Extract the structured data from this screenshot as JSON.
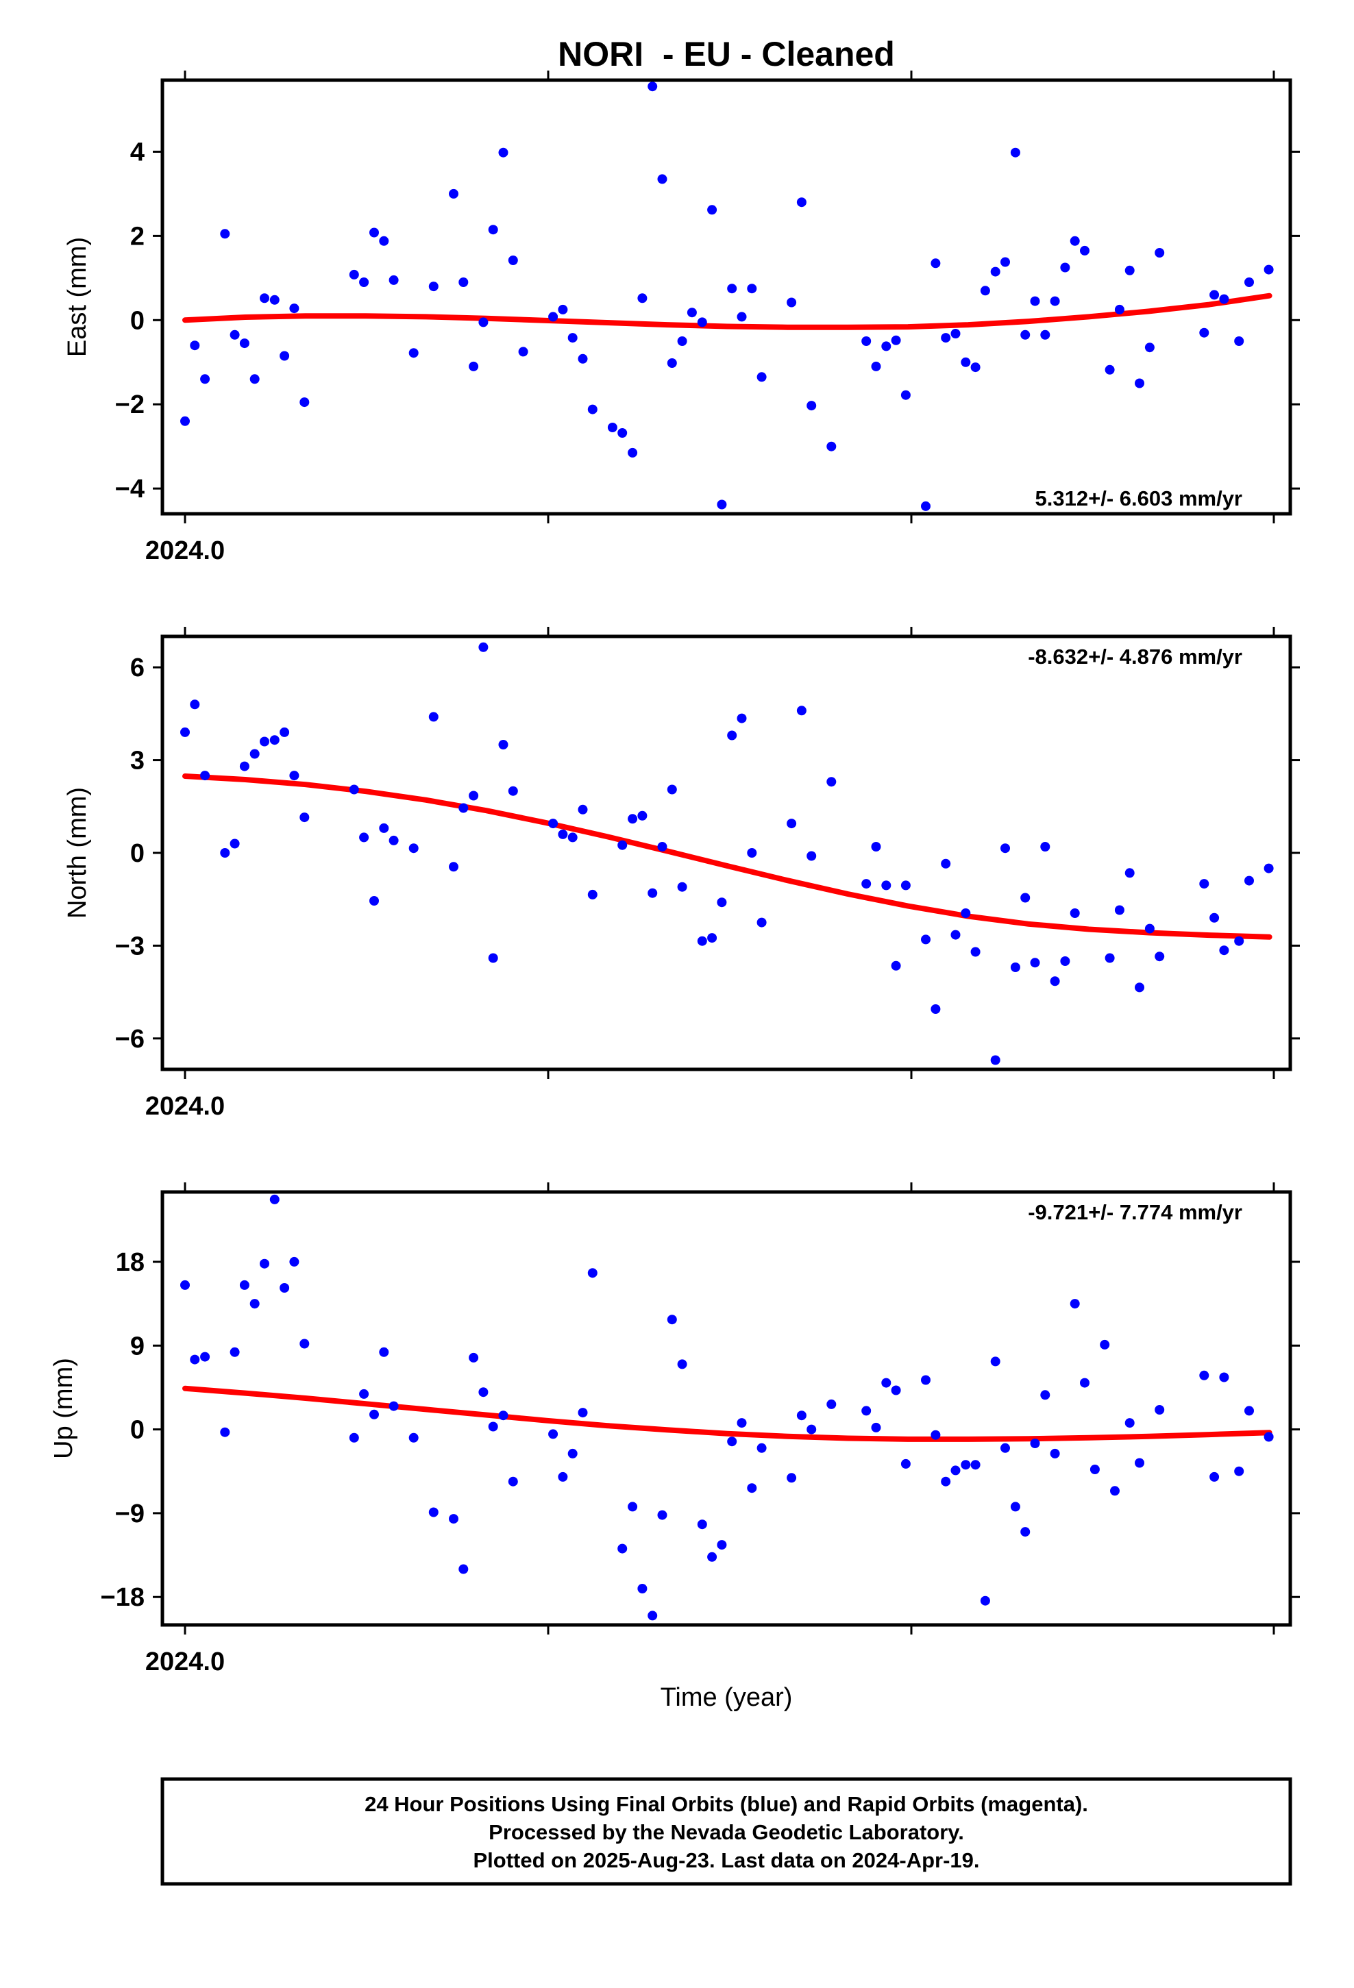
{
  "title": "NORI  - EU - Cleaned",
  "xlabel": "Time (year)",
  "x_tick_label": "2024.0",
  "footer": {
    "line1": "24 Hour Positions Using Final Orbits (blue) and Rapid Orbits (magenta).",
    "line2": "Processed by the Nevada Geodetic Laboratory.",
    "line3": "Plotted on 2025-Aug-23. Last data on 2024-Apr-19."
  },
  "colors": {
    "points": "#0000ff",
    "fit": "#ff0000",
    "frame": "#000000"
  },
  "chart_data": [
    {
      "type": "scatter",
      "panel": "east",
      "ylabel": "East (mm)",
      "rate_label": "5.312+/- 6.603 mm/yr",
      "rate_position": "bottom-right",
      "xlim": [
        2024.0,
        2024.3
      ],
      "ylim": [
        -4.6,
        5.7
      ],
      "yticks": [
        -4,
        -2,
        0,
        2,
        4
      ],
      "ytick_labels": [
        "−4",
        "−2",
        "0",
        "2",
        "4"
      ],
      "x": [
        2024.0,
        2024.0027,
        2024.0055,
        2024.011,
        2024.0137,
        2024.0164,
        2024.0192,
        2024.0219,
        2024.0247,
        2024.0274,
        2024.0301,
        2024.0329,
        2024.0466,
        2024.0493,
        2024.0521,
        2024.0548,
        2024.0575,
        2024.063,
        2024.0685,
        2024.074,
        2024.0767,
        2024.0795,
        2024.0822,
        2024.0849,
        2024.0877,
        2024.0904,
        2024.0932,
        2024.1014,
        2024.1041,
        2024.1068,
        2024.1096,
        2024.1123,
        2024.1178,
        2024.1205,
        2024.1233,
        2024.126,
        2024.1288,
        2024.1315,
        2024.1342,
        2024.137,
        2024.1397,
        2024.1425,
        2024.1452,
        2024.1479,
        2024.1507,
        2024.1534,
        2024.1562,
        2024.1589,
        2024.1671,
        2024.1699,
        2024.1726,
        2024.1781,
        2024.1877,
        2024.1904,
        2024.1932,
        2024.1959,
        2024.1986,
        2024.2041,
        2024.2068,
        2024.2096,
        2024.2123,
        2024.2151,
        2024.2178,
        2024.2205,
        2024.2233,
        2024.226,
        2024.2288,
        2024.2315,
        2024.2342,
        2024.237,
        2024.2397,
        2024.2425,
        2024.2452,
        2024.2479,
        2024.2548,
        2024.2575,
        2024.2603,
        2024.263,
        2024.2658,
        2024.2685,
        2024.2808,
        2024.2836,
        2024.2863,
        2024.2904,
        2024.2932,
        2024.2986
      ],
      "y": [
        -2.4,
        -0.6,
        -1.4,
        2.05,
        -0.35,
        -0.55,
        -1.4,
        0.52,
        0.48,
        -0.85,
        0.28,
        -1.95,
        1.08,
        0.9,
        2.08,
        1.88,
        0.95,
        -0.78,
        0.8,
        3.0,
        0.9,
        -1.1,
        -0.05,
        2.15,
        3.98,
        1.42,
        -0.75,
        0.08,
        0.25,
        -0.42,
        -0.92,
        -2.12,
        -2.55,
        -2.68,
        -3.15,
        0.52,
        5.55,
        3.35,
        -1.02,
        -0.5,
        0.18,
        -0.05,
        2.62,
        -4.38,
        0.75,
        0.08,
        0.75,
        -1.35,
        0.42,
        2.8,
        -2.03,
        -3.0,
        -0.5,
        -1.1,
        -0.62,
        -0.48,
        -1.78,
        -4.42,
        1.35,
        -0.42,
        -0.32,
        -1.0,
        -1.12,
        0.7,
        1.15,
        1.38,
        3.98,
        -0.35,
        0.45,
        -0.35,
        0.45,
        1.25,
        1.88,
        1.65,
        -1.18,
        0.25,
        1.18,
        -1.5,
        -0.65,
        1.6,
        -0.3,
        0.6,
        0.5,
        -0.5,
        0.9,
        1.2
      ],
      "fit": {
        "x": [
          2024.0,
          2024.0166,
          2024.0332,
          2024.0498,
          2024.0664,
          2024.083,
          2024.0996,
          2024.1162,
          2024.1328,
          2024.1494,
          2024.166,
          2024.1826,
          2024.1992,
          2024.2158,
          2024.2324,
          2024.249,
          2024.2656,
          2024.2822,
          2024.2988
        ],
        "y": [
          0.0,
          0.07,
          0.1,
          0.1,
          0.08,
          0.04,
          -0.01,
          -0.06,
          -0.11,
          -0.15,
          -0.17,
          -0.17,
          -0.16,
          -0.11,
          -0.03,
          0.08,
          0.21,
          0.37,
          0.58
        ]
      }
    },
    {
      "type": "scatter",
      "panel": "north",
      "ylabel": "North (mm)",
      "rate_label": "-8.632+/- 4.876 mm/yr",
      "rate_position": "top-right",
      "xlim": [
        2024.0,
        2024.3
      ],
      "ylim": [
        -7.0,
        7.0
      ],
      "yticks": [
        -6,
        -3,
        0,
        3,
        6
      ],
      "ytick_labels": [
        "−6",
        "−3",
        "0",
        "3",
        "6"
      ],
      "x": [
        2024.0,
        2024.0027,
        2024.0055,
        2024.011,
        2024.0137,
        2024.0164,
        2024.0192,
        2024.0219,
        2024.0247,
        2024.0274,
        2024.0301,
        2024.0329,
        2024.0466,
        2024.0493,
        2024.0521,
        2024.0548,
        2024.0575,
        2024.063,
        2024.0685,
        2024.074,
        2024.0767,
        2024.0795,
        2024.0822,
        2024.0849,
        2024.0877,
        2024.0904,
        2024.1014,
        2024.1041,
        2024.1068,
        2024.1096,
        2024.1123,
        2024.1205,
        2024.1233,
        2024.126,
        2024.1288,
        2024.1315,
        2024.1342,
        2024.137,
        2024.1425,
        2024.1452,
        2024.1479,
        2024.1507,
        2024.1534,
        2024.1562,
        2024.1589,
        2024.1671,
        2024.1699,
        2024.1726,
        2024.1781,
        2024.1877,
        2024.1904,
        2024.1932,
        2024.1959,
        2024.1986,
        2024.2041,
        2024.2068,
        2024.2096,
        2024.2123,
        2024.2151,
        2024.2178,
        2024.2233,
        2024.226,
        2024.2288,
        2024.2315,
        2024.2342,
        2024.237,
        2024.2397,
        2024.2425,
        2024.2452,
        2024.2548,
        2024.2575,
        2024.2603,
        2024.263,
        2024.2658,
        2024.2685,
        2024.2808,
        2024.2836,
        2024.2863,
        2024.2904,
        2024.2932,
        2024.2986
      ],
      "y": [
        3.9,
        4.8,
        2.5,
        0.0,
        0.3,
        2.8,
        3.2,
        3.6,
        3.65,
        3.9,
        2.5,
        1.15,
        2.05,
        0.5,
        -1.55,
        0.8,
        0.4,
        0.15,
        4.4,
        -0.45,
        1.45,
        1.85,
        6.65,
        -3.4,
        3.5,
        2.0,
        0.95,
        0.6,
        0.5,
        1.4,
        -1.35,
        0.25,
        1.1,
        1.2,
        -1.3,
        0.2,
        2.05,
        -1.1,
        -2.85,
        -2.75,
        -1.6,
        3.8,
        4.35,
        0.0,
        -2.25,
        0.95,
        4.6,
        -0.1,
        2.3,
        -1.0,
        0.2,
        -1.05,
        -3.65,
        -1.05,
        -2.8,
        -5.05,
        -0.35,
        -2.65,
        -1.95,
        -3.2,
        -6.7,
        0.15,
        -3.7,
        -1.45,
        -3.55,
        0.2,
        -4.15,
        -3.5,
        -1.95,
        -3.4,
        -1.85,
        -0.65,
        -4.35,
        -2.45,
        -3.35,
        -1.0,
        -2.1,
        -3.15,
        -2.85,
        -0.9,
        -0.5
      ],
      "fit": {
        "x": [
          2024.0,
          2024.0166,
          2024.0332,
          2024.0498,
          2024.0664,
          2024.083,
          2024.0996,
          2024.1162,
          2024.1328,
          2024.1494,
          2024.166,
          2024.1826,
          2024.1992,
          2024.2158,
          2024.2324,
          2024.249,
          2024.2656,
          2024.2822,
          2024.2988
        ],
        "y": [
          2.48,
          2.37,
          2.21,
          1.99,
          1.71,
          1.37,
          0.97,
          0.53,
          0.06,
          -0.42,
          -0.89,
          -1.33,
          -1.72,
          -2.05,
          -2.3,
          -2.47,
          -2.58,
          -2.66,
          -2.72
        ]
      }
    },
    {
      "type": "scatter",
      "panel": "up",
      "ylabel": "Up (mm)",
      "rate_label": "-9.721+/- 7.774 mm/yr",
      "rate_position": "top-right",
      "xlim": [
        2024.0,
        2024.3
      ],
      "ylim": [
        -21.0,
        25.5
      ],
      "yticks": [
        -18,
        -9,
        0,
        9,
        18
      ],
      "ytick_labels": [
        "−18",
        "−9",
        "0",
        "9",
        "18"
      ],
      "x": [
        2024.0,
        2024.0027,
        2024.0055,
        2024.011,
        2024.0137,
        2024.0164,
        2024.0192,
        2024.0219,
        2024.0247,
        2024.0274,
        2024.0301,
        2024.0329,
        2024.0466,
        2024.0493,
        2024.0521,
        2024.0548,
        2024.0575,
        2024.063,
        2024.0685,
        2024.074,
        2024.0767,
        2024.0795,
        2024.0822,
        2024.0849,
        2024.0877,
        2024.0904,
        2024.1014,
        2024.1041,
        2024.1068,
        2024.1096,
        2024.1123,
        2024.1205,
        2024.1233,
        2024.126,
        2024.1288,
        2024.1315,
        2024.1342,
        2024.137,
        2024.1425,
        2024.1452,
        2024.1479,
        2024.1507,
        2024.1534,
        2024.1562,
        2024.1589,
        2024.1671,
        2024.1699,
        2024.1726,
        2024.1781,
        2024.1877,
        2024.1904,
        2024.1932,
        2024.1959,
        2024.1986,
        2024.2041,
        2024.2068,
        2024.2096,
        2024.2123,
        2024.2151,
        2024.2178,
        2024.2205,
        2024.2233,
        2024.226,
        2024.2288,
        2024.2315,
        2024.2342,
        2024.237,
        2024.2397,
        2024.2452,
        2024.2479,
        2024.2507,
        2024.2534,
        2024.2562,
        2024.2603,
        2024.263,
        2024.2685,
        2024.2808,
        2024.2836,
        2024.2863,
        2024.2904,
        2024.2932,
        2024.2986
      ],
      "y": [
        15.5,
        7.5,
        7.8,
        -0.3,
        8.3,
        15.5,
        13.5,
        17.8,
        24.7,
        15.2,
        18.0,
        9.2,
        -0.9,
        3.8,
        1.6,
        8.3,
        2.5,
        -0.9,
        -8.9,
        -9.6,
        -15.0,
        7.7,
        4.0,
        0.3,
        1.5,
        -5.6,
        -0.5,
        -5.1,
        -2.6,
        1.8,
        16.8,
        -12.8,
        -8.3,
        -17.1,
        -20.0,
        -9.2,
        11.8,
        7.0,
        -10.2,
        -13.7,
        -12.4,
        -1.3,
        0.7,
        -6.3,
        -2.0,
        -5.2,
        1.5,
        0.0,
        2.7,
        2.0,
        0.2,
        5.0,
        4.2,
        -3.7,
        5.3,
        -0.6,
        -5.6,
        -4.4,
        -3.8,
        -3.8,
        -18.4,
        7.3,
        -2.0,
        -8.3,
        -11.0,
        -1.5,
        3.7,
        -2.6,
        13.5,
        5.0,
        -4.3,
        9.1,
        -6.6,
        0.7,
        -3.6,
        2.1,
        5.8,
        -5.1,
        5.6,
        -4.5,
        2.0,
        -0.8
      ],
      "fit": {
        "x": [
          2024.0,
          2024.0166,
          2024.0332,
          2024.0498,
          2024.0664,
          2024.083,
          2024.0996,
          2024.1162,
          2024.1328,
          2024.1494,
          2024.166,
          2024.1826,
          2024.1992,
          2024.2158,
          2024.2324,
          2024.249,
          2024.2656,
          2024.2822,
          2024.2988
        ],
        "y": [
          4.4,
          3.9,
          3.35,
          2.75,
          2.15,
          1.55,
          0.95,
          0.4,
          -0.05,
          -0.45,
          -0.75,
          -0.95,
          -1.05,
          -1.05,
          -1.0,
          -0.9,
          -0.75,
          -0.55,
          -0.35
        ]
      }
    }
  ]
}
